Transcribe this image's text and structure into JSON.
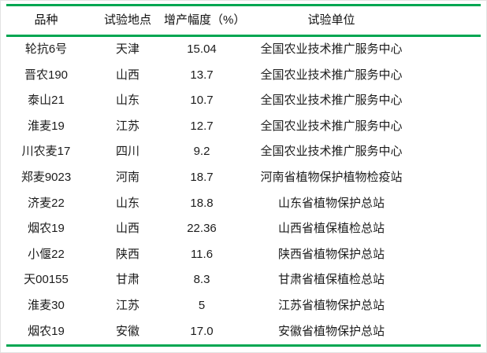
{
  "colors": {
    "accent_green": "#00a651",
    "text": "#1c1c1c",
    "background": "#ffffff"
  },
  "table": {
    "columns": [
      {
        "key": "variety",
        "label": "品种"
      },
      {
        "key": "location",
        "label": "试验地点"
      },
      {
        "key": "increase",
        "label": "增产幅度（%）"
      },
      {
        "key": "unit",
        "label": "试验单位"
      }
    ],
    "rows": [
      {
        "variety": "轮抗6号",
        "location": "天津",
        "increase": "15.04",
        "unit": "全国农业技术推广服务中心"
      },
      {
        "variety": "晋农190",
        "location": "山西",
        "increase": "13.7",
        "unit": "全国农业技术推广服务中心"
      },
      {
        "variety": "泰山21",
        "location": "山东",
        "increase": "10.7",
        "unit": "全国农业技术推广服务中心"
      },
      {
        "variety": "淮麦19",
        "location": "江苏",
        "increase": "12.7",
        "unit": "全国农业技术推广服务中心"
      },
      {
        "variety": "川农麦17",
        "location": "四川",
        "increase": "9.2",
        "unit": "全国农业技术推广服务中心"
      },
      {
        "variety": "郑麦9023",
        "location": "河南",
        "increase": "18.7",
        "unit": "河南省植物保护植物检疫站"
      },
      {
        "variety": "济麦22",
        "location": "山东",
        "increase": "18.8",
        "unit": "山东省植物保护总站"
      },
      {
        "variety": "烟农19",
        "location": "山西",
        "increase": "22.36",
        "unit": "山西省植保植检总站"
      },
      {
        "variety": "小偃22",
        "location": "陕西",
        "increase": "11.6",
        "unit": "陕西省植物保护总站"
      },
      {
        "variety": "天00155",
        "location": "甘肃",
        "increase": "8.3",
        "unit": "甘肃省植保植检总站"
      },
      {
        "variety": "淮麦30",
        "location": "江苏",
        "increase": "5",
        "unit": "江苏省植物保护总站"
      },
      {
        "variety": "烟农19",
        "location": "安徽",
        "increase": "17.0",
        "unit": "安徽省植物保护总站"
      }
    ]
  }
}
